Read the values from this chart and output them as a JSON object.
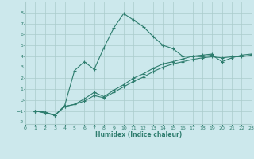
{
  "xlabel": "Humidex (Indice chaleur)",
  "bg_color": "#cce8ec",
  "grid_color": "#aacccc",
  "line_color": "#2e7d6e",
  "xlim": [
    0,
    23
  ],
  "ylim": [
    -2.2,
    9
  ],
  "xticks": [
    0,
    1,
    2,
    3,
    4,
    5,
    6,
    7,
    8,
    9,
    10,
    11,
    12,
    13,
    14,
    15,
    16,
    17,
    18,
    19,
    20,
    21,
    22,
    23
  ],
  "yticks": [
    -2,
    -1,
    0,
    1,
    2,
    3,
    4,
    5,
    6,
    7,
    8
  ],
  "line1_x": [
    1,
    2,
    3,
    4,
    5,
    6,
    7,
    8,
    9,
    10,
    11,
    12,
    13,
    14,
    15,
    16,
    17,
    18,
    19
  ],
  "line1_y": [
    -1.0,
    -1.2,
    -1.4,
    -0.5,
    2.7,
    3.5,
    2.8,
    4.8,
    6.6,
    7.9,
    7.3,
    6.7,
    5.8,
    5.0,
    4.7,
    4.0,
    4.0,
    4.1,
    4.2
  ],
  "line2_x": [
    1,
    2,
    3,
    4,
    5,
    6,
    7,
    8,
    9,
    10,
    11,
    12,
    13,
    14,
    15,
    16,
    17,
    18,
    19,
    20,
    21,
    22,
    23
  ],
  "line2_y": [
    -1.0,
    -1.1,
    -1.4,
    -0.6,
    -0.4,
    -0.1,
    0.4,
    0.2,
    0.7,
    1.2,
    1.7,
    2.1,
    2.6,
    3.0,
    3.3,
    3.5,
    3.7,
    3.85,
    3.95,
    3.85,
    3.95,
    3.95,
    4.1
  ],
  "line3_x": [
    1,
    2,
    3,
    4,
    5,
    6,
    7,
    8,
    9,
    10,
    11,
    12,
    13,
    14,
    15,
    16,
    17,
    18,
    19,
    20,
    21,
    22,
    23
  ],
  "line3_y": [
    -1.0,
    -1.15,
    -1.4,
    -0.6,
    -0.4,
    0.1,
    0.7,
    0.3,
    0.9,
    1.4,
    2.0,
    2.4,
    2.9,
    3.3,
    3.5,
    3.75,
    4.0,
    3.95,
    4.1,
    3.5,
    3.85,
    4.1,
    4.2
  ]
}
